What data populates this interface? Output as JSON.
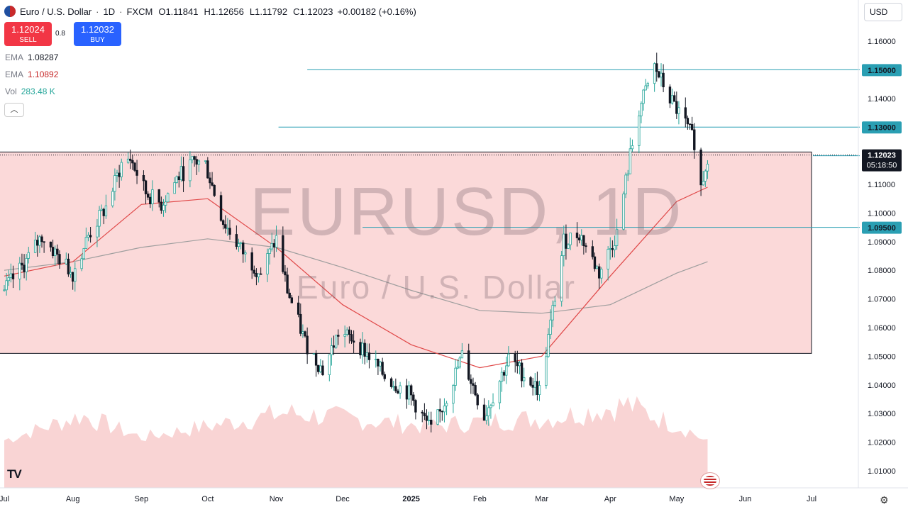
{
  "header": {
    "title": "Euro / U.S. Dollar",
    "timeframe": "1D",
    "source": "FXCM",
    "open_label": "O",
    "open": "1.11841",
    "high_label": "H",
    "high": "1.12656",
    "low_label": "L",
    "low": "1.11792",
    "close_label": "C",
    "close": "1.12023",
    "change": "+0.00182 (+0.16%)"
  },
  "trade": {
    "sell_price": "1.12024",
    "sell_label": "SELL",
    "spread": "0.8",
    "buy_price": "1.12032",
    "buy_label": "BUY"
  },
  "indicators": {
    "ema1_label": "EMA",
    "ema1_value": "1.08287",
    "ema2_label": "EMA",
    "ema2_value": "1.10892",
    "vol_label": "Vol",
    "vol_value": "283.48 K"
  },
  "currency": "USD",
  "watermark": {
    "symbol": "EURUSD, 1D",
    "name": "Euro / U.S. Dollar"
  },
  "countdown": "05:18:50",
  "colors": {
    "up": "#26a69a",
    "down": "#131722",
    "ema_fast": "#e04848",
    "ema_slow": "#9e9e9e",
    "hline": "#2a9fb3",
    "box_fill": "#fbd9d9",
    "vol_up": "#b2dfdb",
    "vol_down": "#f8c9c9"
  },
  "icons": [
    "tradingview-logo-icon",
    "us-flag-icon",
    "settings-icon",
    "collapse-chevron-icon"
  ],
  "chart_data": {
    "type": "candlestick",
    "ylim": [
      1.0,
      1.17
    ],
    "y_ticks": [
      "1.16000",
      "1.15000",
      "1.14000",
      "1.13000",
      "1.12000",
      "1.11000",
      "1.10000",
      "1.09000",
      "1.08000",
      "1.07000",
      "1.06000",
      "1.05000",
      "1.04000",
      "1.03000",
      "1.02000",
      "1.01000"
    ],
    "x_ticks": [
      {
        "label": "Jul",
        "x": "2024-07-01"
      },
      {
        "label": "Aug",
        "x": "2024-08-01"
      },
      {
        "label": "Sep",
        "x": "2024-09-01"
      },
      {
        "label": "Oct",
        "x": "2024-10-01"
      },
      {
        "label": "Nov",
        "x": "2024-11-01"
      },
      {
        "label": "Dec",
        "x": "2024-12-01"
      },
      {
        "label": "2025",
        "x": "2025-01-01"
      },
      {
        "label": "Feb",
        "x": "2025-02-01"
      },
      {
        "label": "Mar",
        "x": "2025-03-01"
      },
      {
        "label": "Apr",
        "x": "2025-04-01"
      },
      {
        "label": "May",
        "x": "2025-05-01"
      },
      {
        "label": "Jun",
        "x": "2025-06-01"
      },
      {
        "label": "Jul",
        "x": "2025-07-01"
      }
    ],
    "horizontal_levels": [
      "1.15000",
      "1.13000",
      "1.12000",
      "1.09500"
    ],
    "last_price": "1.12023",
    "range_box": {
      "from": "2024-06-25",
      "to": "2025-07-01",
      "low": 1.051,
      "high": 1.1213
    },
    "close_path": [
      {
        "x": "2024-07-01",
        "y": 1.073
      },
      {
        "x": "2024-07-10",
        "y": 1.082
      },
      {
        "x": "2024-07-18",
        "y": 1.092
      },
      {
        "x": "2024-07-25",
        "y": 1.085
      },
      {
        "x": "2024-08-01",
        "y": 1.079
      },
      {
        "x": "2024-08-08",
        "y": 1.092
      },
      {
        "x": "2024-08-16",
        "y": 1.102
      },
      {
        "x": "2024-08-23",
        "y": 1.117
      },
      {
        "x": "2024-08-27",
        "y": 1.119
      },
      {
        "x": "2024-09-03",
        "y": 1.107
      },
      {
        "x": "2024-09-10",
        "y": 1.103
      },
      {
        "x": "2024-09-17",
        "y": 1.112
      },
      {
        "x": "2024-09-25",
        "y": 1.118
      },
      {
        "x": "2024-09-30",
        "y": 1.117
      },
      {
        "x": "2024-10-08",
        "y": 1.097
      },
      {
        "x": "2024-10-18",
        "y": 1.085
      },
      {
        "x": "2024-10-25",
        "y": 1.079
      },
      {
        "x": "2024-11-01",
        "y": 1.091
      },
      {
        "x": "2024-11-06",
        "y": 1.073
      },
      {
        "x": "2024-11-14",
        "y": 1.055
      },
      {
        "x": "2024-11-22",
        "y": 1.045
      },
      {
        "x": "2024-11-29",
        "y": 1.058
      },
      {
        "x": "2024-12-06",
        "y": 1.056
      },
      {
        "x": "2024-12-13",
        "y": 1.05
      },
      {
        "x": "2024-12-20",
        "y": 1.043
      },
      {
        "x": "2024-12-31",
        "y": 1.037
      },
      {
        "x": "2025-01-10",
        "y": 1.024
      },
      {
        "x": "2025-01-14",
        "y": 1.03
      },
      {
        "x": "2025-01-24",
        "y": 1.05
      },
      {
        "x": "2025-02-03",
        "y": 1.029
      },
      {
        "x": "2025-02-14",
        "y": 1.049
      },
      {
        "x": "2025-02-28",
        "y": 1.038
      },
      {
        "x": "2025-03-05",
        "y": 1.061
      },
      {
        "x": "2025-03-11",
        "y": 1.09
      },
      {
        "x": "2025-03-18",
        "y": 1.093
      },
      {
        "x": "2025-03-27",
        "y": 1.079
      },
      {
        "x": "2025-04-04",
        "y": 1.093
      },
      {
        "x": "2025-04-10",
        "y": 1.12
      },
      {
        "x": "2025-04-14",
        "y": 1.136
      },
      {
        "x": "2025-04-21",
        "y": 1.151
      },
      {
        "x": "2025-04-28",
        "y": 1.14
      },
      {
        "x": "2025-05-05",
        "y": 1.131
      },
      {
        "x": "2025-05-09",
        "y": 1.125
      },
      {
        "x": "2025-05-12",
        "y": 1.109
      },
      {
        "x": "2025-05-15",
        "y": 1.12
      }
    ],
    "ema_fast": [
      {
        "x": "2024-07-01",
        "y": 1.078
      },
      {
        "x": "2024-08-01",
        "y": 1.083
      },
      {
        "x": "2024-09-01",
        "y": 1.103
      },
      {
        "x": "2024-10-01",
        "y": 1.105
      },
      {
        "x": "2024-11-01",
        "y": 1.088
      },
      {
        "x": "2024-12-01",
        "y": 1.068
      },
      {
        "x": "2025-01-01",
        "y": 1.054
      },
      {
        "x": "2025-02-01",
        "y": 1.046
      },
      {
        "x": "2025-03-01",
        "y": 1.05
      },
      {
        "x": "2025-04-01",
        "y": 1.078
      },
      {
        "x": "2025-05-01",
        "y": 1.104
      },
      {
        "x": "2025-05-15",
        "y": 1.109
      }
    ],
    "ema_slow": [
      {
        "x": "2024-07-01",
        "y": 1.08
      },
      {
        "x": "2024-08-01",
        "y": 1.083
      },
      {
        "x": "2024-09-01",
        "y": 1.088
      },
      {
        "x": "2024-10-01",
        "y": 1.091
      },
      {
        "x": "2024-11-01",
        "y": 1.088
      },
      {
        "x": "2024-12-01",
        "y": 1.081
      },
      {
        "x": "2025-01-01",
        "y": 1.073
      },
      {
        "x": "2025-02-01",
        "y": 1.066
      },
      {
        "x": "2025-03-01",
        "y": 1.065
      },
      {
        "x": "2025-04-01",
        "y": 1.068
      },
      {
        "x": "2025-05-01",
        "y": 1.079
      },
      {
        "x": "2025-05-15",
        "y": 1.083
      }
    ],
    "volume_relative": [
      {
        "x": "2024-07-01",
        "v": 0.35
      },
      {
        "x": "2024-08-05",
        "v": 0.8
      },
      {
        "x": "2024-09-01",
        "v": 0.4
      },
      {
        "x": "2024-11-06",
        "v": 0.85
      },
      {
        "x": "2025-01-10",
        "v": 0.6
      },
      {
        "x": "2025-02-03",
        "v": 0.7
      },
      {
        "x": "2025-03-05",
        "v": 0.75
      },
      {
        "x": "2025-04-09",
        "v": 1.0
      },
      {
        "x": "2025-04-14",
        "v": 0.9
      },
      {
        "x": "2025-05-08",
        "v": 0.5
      },
      {
        "x": "2025-05-15",
        "v": 0.3
      }
    ]
  }
}
